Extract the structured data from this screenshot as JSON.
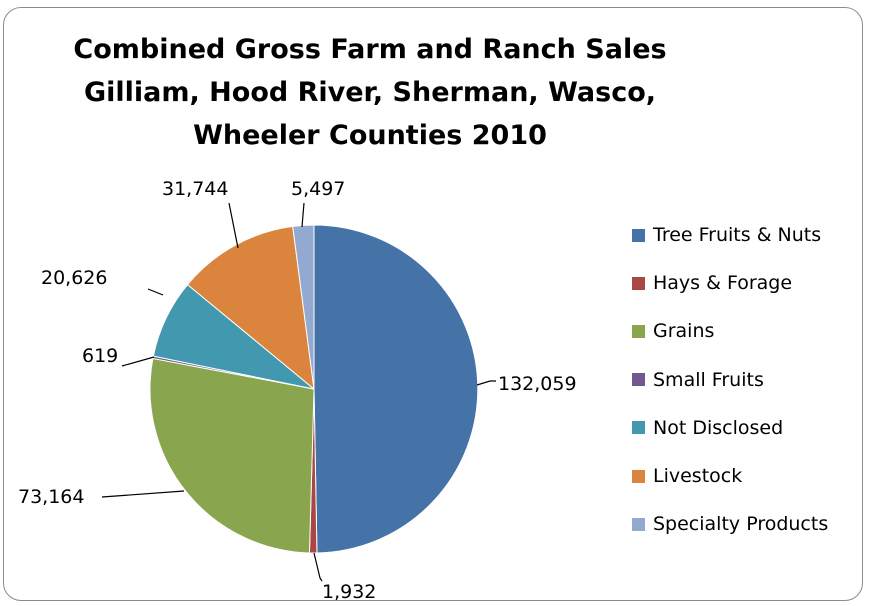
{
  "chart_data": {
    "type": "pie",
    "title_lines": [
      "Combined Gross Farm and Ranch Sales",
      "Gilliam, Hood River, Sherman, Wasco,",
      "Wheeler Counties 2010"
    ],
    "slices": [
      {
        "name": "Tree Fruits & Nuts",
        "value": 132059,
        "label": "132,059",
        "color": "#4572A7"
      },
      {
        "name": "Hays & Forage",
        "value": 1932,
        "label": "1,932",
        "color": "#AA4643"
      },
      {
        "name": "Grains",
        "value": 73164,
        "label": "73,164",
        "color": "#89A54E"
      },
      {
        "name": "Small Fruits",
        "value": 619,
        "label": "619",
        "color": "#71588F"
      },
      {
        "name": "Not Disclosed",
        "value": 20626,
        "label": "20,626",
        "color": "#4198AF"
      },
      {
        "name": "Livestock",
        "value": 31744,
        "label": "31,744",
        "color": "#DB843D"
      },
      {
        "name": "Specialty Products",
        "value": 5497,
        "label": "5,497",
        "color": "#93A9CF"
      }
    ],
    "start": "12 o'clock",
    "direction": "clockwise",
    "legend_position": "right"
  }
}
